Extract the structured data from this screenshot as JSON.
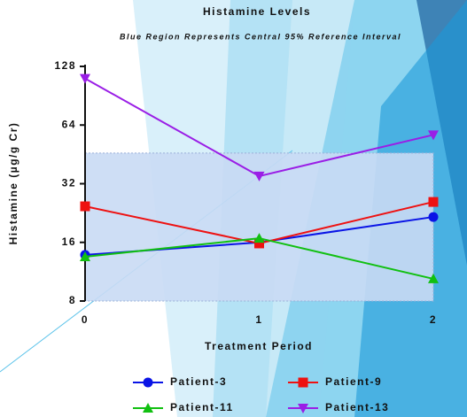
{
  "chart_data": {
    "type": "line",
    "title": "Histamine Levels",
    "subtitle": "Blue Region Represents Central 95% Reference Interval",
    "x_label": "Treatment Period",
    "y_label": "Histamine (µg/g Cr)",
    "x": [
      0,
      1,
      2
    ],
    "xlim": [
      0,
      2
    ],
    "xticks": [
      0,
      1,
      2
    ],
    "ylim": [
      8,
      128
    ],
    "yticks": [
      8,
      16,
      32,
      64,
      128
    ],
    "y_scale": "log2",
    "reference_band": {
      "low": 8,
      "high": 46,
      "color": "#c9daf4"
    },
    "series": [
      {
        "name": "Patient-3",
        "color": "#0a14e6",
        "marker": "circle",
        "values": [
          13.8,
          16,
          21.6
        ]
      },
      {
        "name": "Patient-9",
        "color": "#ee1111",
        "marker": "square",
        "values": [
          24.5,
          15.8,
          25.8
        ]
      },
      {
        "name": "Patient-11",
        "color": "#11c011",
        "marker": "triangle-up",
        "values": [
          13.5,
          16.8,
          10.4
        ]
      },
      {
        "name": "Patient-13",
        "color": "#9a1ee6",
        "marker": "triangle-down",
        "values": [
          111,
          35,
          57
        ]
      }
    ]
  }
}
